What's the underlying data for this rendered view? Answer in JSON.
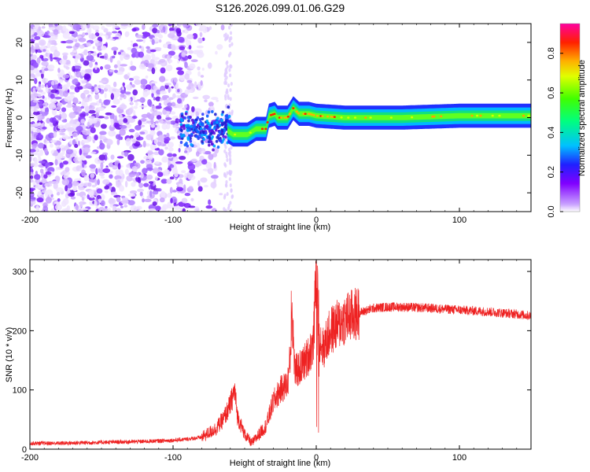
{
  "title": "S126.2026.099.01.06.G29",
  "colors": {
    "snr_line": "#ee2222",
    "axis": "#000000",
    "spec_base": "#8000ff"
  },
  "chart_data": [
    {
      "type": "heatmap",
      "xlabel": "Height of straight line (km)",
      "ylabel": "Frequency (Hz)",
      "xlim": [
        -200,
        150
      ],
      "ylim": [
        -25,
        25
      ],
      "xticks": [
        -200,
        -100,
        0,
        100
      ],
      "yticks": [
        -20,
        -10,
        0,
        10,
        20
      ],
      "colorbar": {
        "label": "Normalized spectral amplitude",
        "range": [
          0,
          0.95
        ],
        "ticks": [
          0.0,
          0.2,
          0.4,
          0.6,
          0.8
        ]
      },
      "ridge": {
        "description_points_km_hz": [
          [
            -80,
            -3
          ],
          [
            -62,
            -3.5
          ],
          [
            -58,
            -4.5
          ],
          [
            -48,
            -4.5
          ],
          [
            -42,
            -3
          ],
          [
            -35,
            -3
          ],
          [
            -33,
            0.5
          ],
          [
            -29,
            1
          ],
          [
            -27,
            0
          ],
          [
            -20,
            0
          ],
          [
            -16,
            2.5
          ],
          [
            -12,
            1
          ],
          [
            -5,
            1
          ],
          [
            0,
            0.5
          ],
          [
            20,
            0
          ],
          [
            60,
            0
          ],
          [
            100,
            0.5
          ],
          [
            150,
            0.5
          ]
        ]
      }
    },
    {
      "type": "line",
      "xlabel": "Height of straight line (km)",
      "ylabel": "SNR (10 * v/v)",
      "xlim": [
        -200,
        150
      ],
      "ylim": [
        0,
        320
      ],
      "xticks": [
        -200,
        -100,
        0,
        100
      ],
      "yticks": [
        0,
        100,
        200,
        300
      ],
      "series": [
        {
          "name": "SNR",
          "x": [
            -200,
            -180,
            -160,
            -140,
            -120,
            -100,
            -90,
            -80,
            -70,
            -65,
            -60,
            -57,
            -55,
            -50,
            -45,
            -40,
            -35,
            -30,
            -25,
            -20,
            -18,
            -17,
            -15,
            -10,
            -5,
            -2,
            0,
            2,
            5,
            10,
            15,
            20,
            30,
            40,
            50,
            60,
            80,
            100,
            120,
            140,
            150
          ],
          "values": [
            10,
            10,
            11,
            12,
            13,
            15,
            17,
            20,
            35,
            50,
            75,
            100,
            55,
            25,
            10,
            25,
            40,
            80,
            100,
            110,
            160,
            240,
            130,
            140,
            160,
            180,
            300,
            190,
            170,
            200,
            210,
            220,
            230,
            238,
            240,
            240,
            238,
            235,
            232,
            228,
            225
          ]
        }
      ]
    }
  ]
}
